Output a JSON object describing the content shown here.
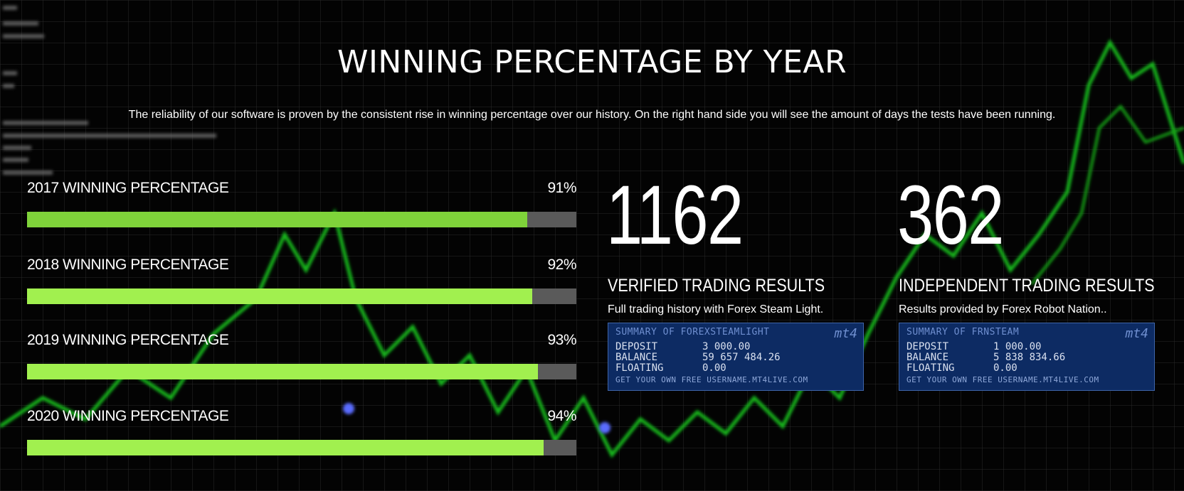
{
  "section": {
    "title": "WINNING PERCENTAGE BY YEAR",
    "subtitle": "The reliability of our software is proven by the consistent rise in winning percentage over our history. On the right hand side you will see the amount of days the tests have been running."
  },
  "bars": [
    {
      "label": "2017 WINNING PERCENTAGE",
      "percent_text": "91%",
      "percent": 91,
      "color": "#7fd33a"
    },
    {
      "label": "2018 WINNING PERCENTAGE",
      "percent_text": "92%",
      "percent": 92,
      "color": "#a1f04f"
    },
    {
      "label": "2019 WINNING PERCENTAGE",
      "percent_text": "93%",
      "percent": 93,
      "color": "#a1f04f"
    },
    {
      "label": "2020 WINNING PERCENTAGE",
      "percent_text": "94%",
      "percent": 94,
      "color": "#a1f04f"
    }
  ],
  "stats": [
    {
      "number": "1162",
      "heading": "VERIFIED TRADING RESULTS",
      "description": "Full trading history with Forex Steam Light.",
      "widget": {
        "title": "SUMMARY OF FOREXSTEAMLIGHT",
        "logo": "mt4",
        "rows": [
          {
            "key": "DEPOSIT",
            "value": "3 000.00"
          },
          {
            "key": "BALANCE",
            "value": "59 657 484.26"
          },
          {
            "key": "FLOATING",
            "value": "0.00"
          }
        ],
        "footer": "GET YOUR OWN FREE USERNAME.MT4LIVE.COM"
      }
    },
    {
      "number": "362",
      "heading": "INDEPENDENT TRADING RESULTS",
      "description": "Results provided by Forex Robot Nation..",
      "widget": {
        "title": "SUMMARY OF FRNSTEAM",
        "logo": "mt4",
        "rows": [
          {
            "key": "DEPOSIT",
            "value": "1 000.00"
          },
          {
            "key": "BALANCE",
            "value": "5 838 834.66"
          },
          {
            "key": "FLOATING",
            "value": "0.00"
          }
        ],
        "footer": "GET YOUR OWN FREE USERNAME.MT4LIVE.COM"
      }
    }
  ],
  "colors": {
    "background": "#000000",
    "bar_track": "#5a5a5a",
    "chart_line": "#19c41e",
    "widget_bg": "#0d2b63"
  }
}
